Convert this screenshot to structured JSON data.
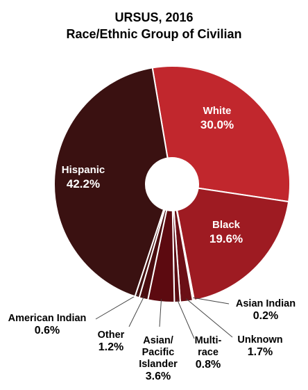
{
  "chart_data": {
    "type": "pie",
    "title": "URSUS, 2016",
    "subtitle": "Race/Ethnic Group of Civilian",
    "donut": true,
    "slices": [
      {
        "label": "White",
        "label_lines": [
          "White"
        ],
        "value": 30.0,
        "value_text": "30.0%",
        "color": "#c1272d"
      },
      {
        "label": "Black",
        "label_lines": [
          "Black"
        ],
        "value": 19.6,
        "value_text": "19.6%",
        "color": "#9e1b22"
      },
      {
        "label": "Asian Indian",
        "label_lines": [
          "Asian Indian"
        ],
        "value": 0.2,
        "value_text": "0.2%",
        "color": "#7a1018"
      },
      {
        "label": "Unknown",
        "label_lines": [
          "Unknown"
        ],
        "value": 1.7,
        "value_text": "1.7%",
        "color": "#6b0f16"
      },
      {
        "label": "Multi-race",
        "label_lines": [
          "Multi-",
          "race"
        ],
        "value": 0.8,
        "value_text": "0.8%",
        "color": "#5a0c12"
      },
      {
        "label": "Asian/Pacific Islander",
        "label_lines": [
          "Asian/",
          "Pacific",
          "Islander"
        ],
        "value": 3.6,
        "value_text": "3.6%",
        "color": "#5c0a10"
      },
      {
        "label": "Other",
        "label_lines": [
          "Other"
        ],
        "value": 1.2,
        "value_text": "1.2%",
        "color": "#4a0d10"
      },
      {
        "label": "American Indian",
        "label_lines": [
          "American Indian"
        ],
        "value": 0.6,
        "value_text": "0.6%",
        "color": "#421010"
      },
      {
        "label": "Hispanic",
        "label_lines": [
          "Hispanic"
        ],
        "value": 42.2,
        "value_text": "42.2%",
        "color": "#3a1111"
      }
    ]
  }
}
